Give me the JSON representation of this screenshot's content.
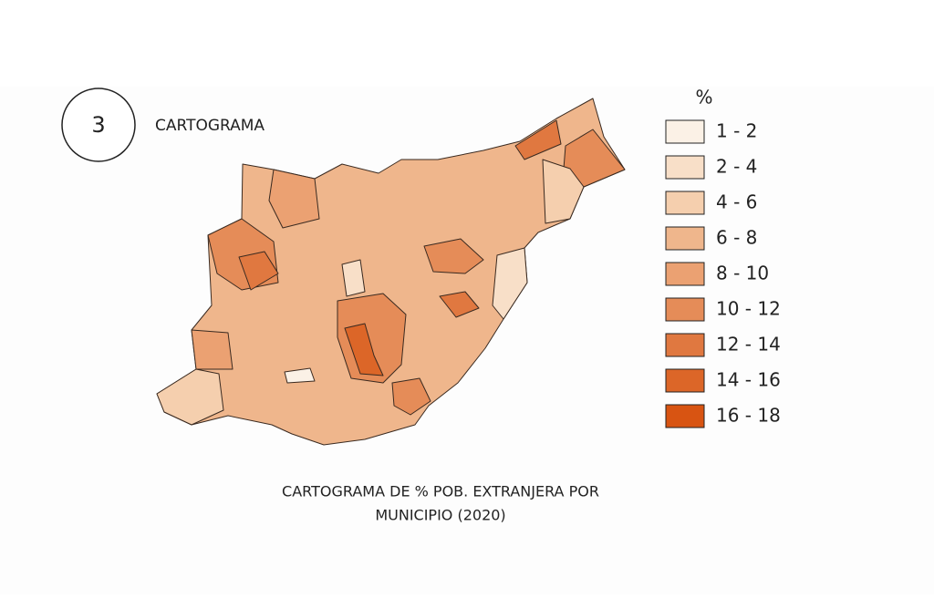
{
  "badge": {
    "number": "3",
    "label": "CARTOGRAMA"
  },
  "legend": {
    "title": "%",
    "items": [
      {
        "label": "1 - 2",
        "color": "#fbf1e6"
      },
      {
        "label": "2 - 4",
        "color": "#f8dfc8"
      },
      {
        "label": "4 - 6",
        "color": "#f5cfae"
      },
      {
        "label": "6 - 8",
        "color": "#efb68c"
      },
      {
        "label": "8 - 10",
        "color": "#eba172"
      },
      {
        "label": "10 - 12",
        "color": "#e58c58"
      },
      {
        "label": "12 - 14",
        "color": "#e07840"
      },
      {
        "label": "14 - 16",
        "color": "#dc6628"
      },
      {
        "label": "16 - 18",
        "color": "#d85412"
      }
    ]
  },
  "caption": [
    "CARTOGRAMA DE % POB. EXTRANJERA POR",
    "MUNICIPIO (2020)"
  ]
}
